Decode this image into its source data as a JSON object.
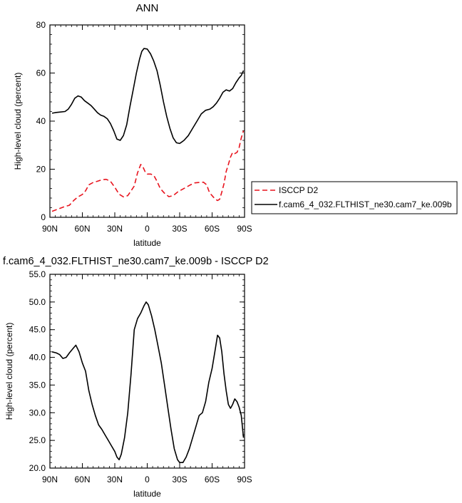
{
  "chart_data": [
    {
      "type": "line",
      "title": "ANN",
      "xlabel": "latitude",
      "ylabel": "High-level cloud (percent)",
      "xlim": [
        -90,
        90
      ],
      "ylim": [
        0,
        80
      ],
      "x_ticks": [
        -90,
        -60,
        -30,
        0,
        30,
        60,
        90
      ],
      "x_tick_labels": [
        "90N",
        "60N",
        "30N",
        "0",
        "30S",
        "60S",
        "90S"
      ],
      "y_ticks": [
        0,
        20,
        40,
        60,
        80
      ],
      "y_tick_labels": [
        "0",
        "20",
        "40",
        "60",
        "80"
      ],
      "legend": {
        "placement": "right"
      },
      "series": [
        {
          "name": "ISCCP D2",
          "color": "#e8141e",
          "style": "dashed",
          "x": [
            -88,
            -82,
            -76,
            -72,
            -68,
            -64,
            -60,
            -57,
            -54,
            -50,
            -46,
            -42,
            -38,
            -34,
            -30,
            -26,
            -22,
            -18,
            -15,
            -12,
            -9,
            -6,
            -4,
            -2,
            0,
            3,
            6,
            9,
            12,
            16,
            20,
            24,
            28,
            32,
            36,
            40,
            44,
            48,
            52,
            55,
            57,
            59,
            61,
            63,
            65,
            67,
            69,
            71,
            73,
            75,
            77,
            79,
            81,
            83,
            85,
            87,
            89
          ],
          "y": [
            2.5,
            3.5,
            4.5,
            5.0,
            7.0,
            8.5,
            9.5,
            11.0,
            13.5,
            14.5,
            15.0,
            15.6,
            15.8,
            15.0,
            12.5,
            9.6,
            8.5,
            9.0,
            11.0,
            13.0,
            18.5,
            22.0,
            21.0,
            19.0,
            18.0,
            18.0,
            17.5,
            15.0,
            12.0,
            10.0,
            8.6,
            9.0,
            10.5,
            11.5,
            12.5,
            13.5,
            14.3,
            14.5,
            14.6,
            13.5,
            11.0,
            9.5,
            8.5,
            7.5,
            7.0,
            7.5,
            10.5,
            14.0,
            19.0,
            22.0,
            25.0,
            27.0,
            26.5,
            27.0,
            29.0,
            33.0,
            36.0
          ]
        },
        {
          "name": "f.cam6_4_032.FLTHIST_ne30.cam7_ke.009b",
          "color": "#000000",
          "style": "solid",
          "x": [
            -88,
            -84,
            -80,
            -76,
            -73,
            -70,
            -67,
            -64,
            -61,
            -58,
            -55,
            -52,
            -49,
            -46,
            -43,
            -40,
            -37,
            -34,
            -31,
            -28,
            -25,
            -22,
            -19,
            -16,
            -13,
            -10,
            -7,
            -5,
            -3,
            0,
            3,
            6,
            9,
            12,
            15,
            18,
            21,
            24,
            27,
            30,
            34,
            38,
            42,
            46,
            50,
            54,
            58,
            61,
            64,
            67,
            70,
            73,
            76,
            79,
            82,
            85,
            87,
            89
          ],
          "y": [
            43.3,
            43.6,
            43.8,
            44.0,
            45.0,
            47.0,
            49.5,
            50.5,
            50.0,
            48.5,
            47.5,
            46.5,
            45.0,
            43.5,
            42.5,
            42.0,
            41.0,
            39.0,
            36.0,
            32.5,
            32.0,
            34.0,
            38.5,
            46.0,
            53.0,
            60.0,
            66.0,
            69.0,
            70.2,
            70.0,
            68.0,
            65.0,
            61.0,
            55.0,
            48.0,
            42.0,
            37.0,
            33.0,
            31.0,
            30.7,
            32.0,
            34.0,
            37.0,
            40.0,
            43.0,
            44.5,
            45.0,
            46.0,
            47.5,
            49.5,
            52.0,
            53.0,
            52.5,
            53.5,
            56.0,
            58.0,
            59.0,
            61.0
          ]
        }
      ]
    },
    {
      "type": "line",
      "title": "f.cam6_4_032.FLTHIST_ne30.cam7_ke.009b - ISCCP D2",
      "xlabel": "latitude",
      "ylabel": "High-level cloud (percent)",
      "xlim": [
        -90,
        90
      ],
      "ylim": [
        20,
        55
      ],
      "x_ticks": [
        -90,
        -60,
        -30,
        0,
        30,
        60,
        90
      ],
      "x_tick_labels": [
        "90N",
        "60N",
        "30N",
        "0",
        "30S",
        "60S",
        "90S"
      ],
      "y_ticks": [
        20,
        25,
        30,
        35,
        40,
        45,
        50,
        55
      ],
      "y_tick_labels": [
        "20.0",
        "25.0",
        "30.0",
        "35.0",
        "40.0",
        "45.0",
        "50.0",
        "55.0"
      ],
      "series": [
        {
          "color": "#000000",
          "style": "solid",
          "x": [
            -88,
            -84,
            -81,
            -78,
            -75,
            -72,
            -69,
            -66,
            -63,
            -60,
            -57,
            -54,
            -51,
            -48,
            -45,
            -42,
            -39,
            -36,
            -33,
            -30,
            -28,
            -26,
            -24,
            -21,
            -18,
            -15,
            -12,
            -9,
            -6,
            -3,
            -1,
            1,
            4,
            7,
            10,
            13,
            16,
            19,
            22,
            25,
            28,
            30,
            33,
            36,
            39,
            42,
            45,
            48,
            51,
            54,
            57,
            60,
            63,
            65,
            67,
            69,
            71,
            73,
            75,
            77,
            79,
            81,
            83,
            85,
            87,
            89
          ],
          "y": [
            41.0,
            40.8,
            40.5,
            39.8,
            40.0,
            40.8,
            41.5,
            42.2,
            41.0,
            39.0,
            37.5,
            34.0,
            31.5,
            29.5,
            27.8,
            27.0,
            26.0,
            25.0,
            24.0,
            23.0,
            22.0,
            21.5,
            22.5,
            25.5,
            30.0,
            37.0,
            45.0,
            47.0,
            48.0,
            49.3,
            50.0,
            49.5,
            47.5,
            45.0,
            42.0,
            39.0,
            35.0,
            31.0,
            27.0,
            23.5,
            21.5,
            21.0,
            21.0,
            22.0,
            23.5,
            25.5,
            27.5,
            29.5,
            30.0,
            32.0,
            35.5,
            38.0,
            41.5,
            44.0,
            43.5,
            41.0,
            37.0,
            34.0,
            31.5,
            30.8,
            31.5,
            32.5,
            32.0,
            31.0,
            29.5,
            25.5
          ]
        }
      ]
    }
  ]
}
